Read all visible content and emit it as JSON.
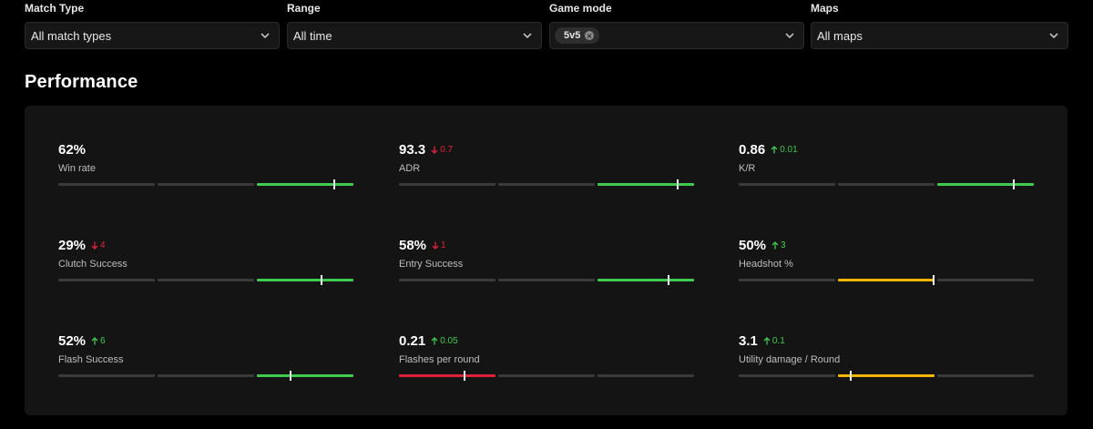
{
  "filters": [
    {
      "label": "Match Type",
      "value": "All match types",
      "kind": "select"
    },
    {
      "label": "Range",
      "value": "All time",
      "kind": "select"
    },
    {
      "label": "Game mode",
      "value": "",
      "kind": "chips",
      "chips": [
        "5v5"
      ]
    },
    {
      "label": "Maps",
      "value": "All maps",
      "kind": "select"
    }
  ],
  "section": {
    "title": "Performance"
  },
  "colors": {
    "green": "#3ecb4f",
    "red": "#e0213a",
    "yellow": "#f2b705",
    "track": "#3a3a3a"
  },
  "stats": [
    {
      "value": "62%",
      "delta": "",
      "direction": "none",
      "label": "Win rate",
      "active_segment": 2,
      "level": "green",
      "position": 0.8
    },
    {
      "value": "93.3",
      "delta": "0.7",
      "direction": "down",
      "label": "ADR",
      "active_segment": 2,
      "level": "green",
      "position": 0.83
    },
    {
      "value": "0.86",
      "delta": "0.01",
      "direction": "up",
      "label": "K/R",
      "active_segment": 2,
      "level": "green",
      "position": 0.79
    },
    {
      "value": "29%",
      "delta": "4",
      "direction": "down",
      "label": "Clutch Success",
      "active_segment": 2,
      "level": "green",
      "position": 0.67
    },
    {
      "value": "58%",
      "delta": "1",
      "direction": "down",
      "label": "Entry Success",
      "active_segment": 2,
      "level": "green",
      "position": 0.74
    },
    {
      "value": "50%",
      "delta": "3",
      "direction": "up",
      "label": "Headshot %",
      "active_segment": 1,
      "level": "yellow",
      "position": 0.99
    },
    {
      "value": "52%",
      "delta": "6",
      "direction": "up",
      "label": "Flash Success",
      "active_segment": 2,
      "level": "green",
      "position": 0.35
    },
    {
      "value": "0.21",
      "delta": "0.05",
      "direction": "up",
      "label": "Flashes per round",
      "active_segment": 0,
      "level": "red",
      "position": 0.68
    },
    {
      "value": "3.1",
      "delta": "0.1",
      "direction": "up",
      "label": "Utility damage / Round",
      "active_segment": 1,
      "level": "yellow",
      "position": 0.13
    }
  ]
}
